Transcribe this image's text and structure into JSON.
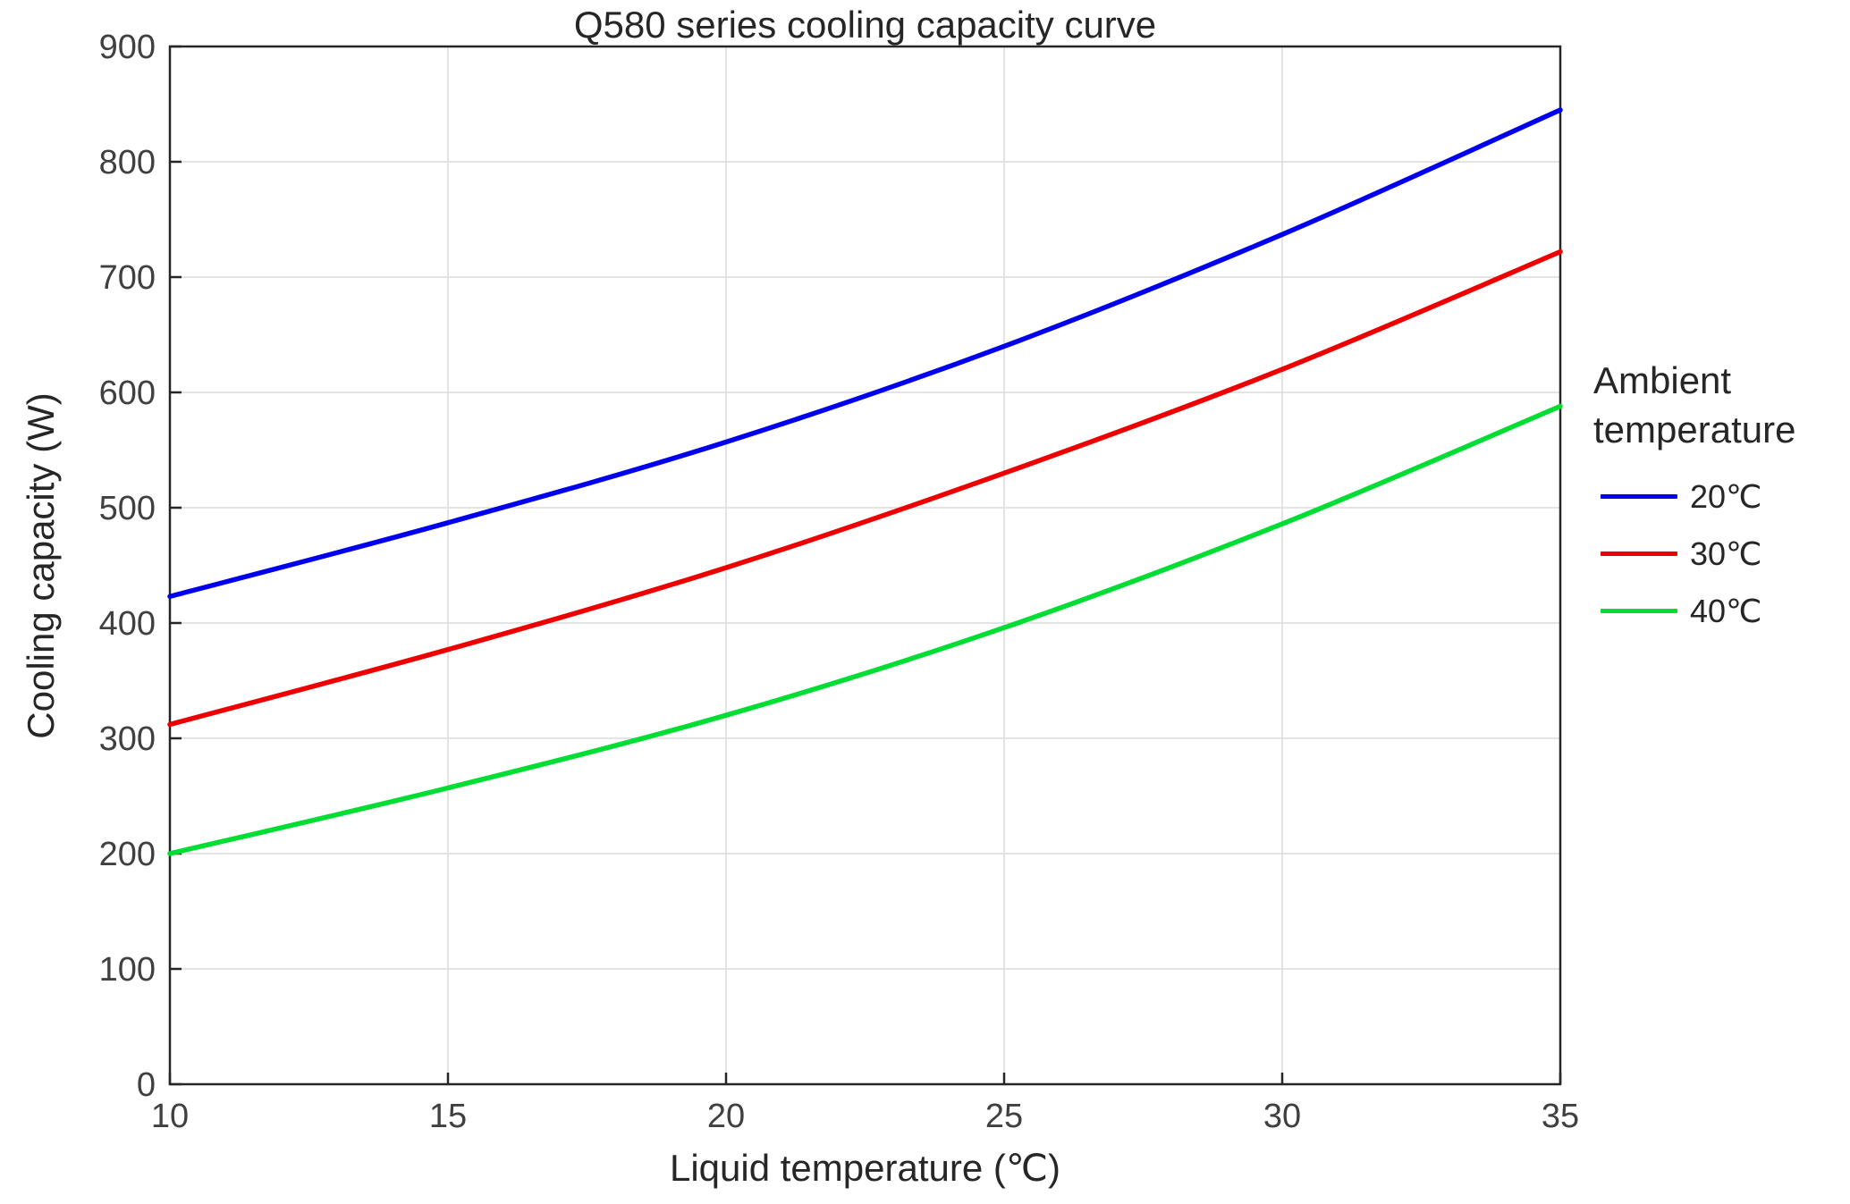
{
  "chart_data": {
    "type": "line",
    "title": "Q580 series cooling capacity curve",
    "xlabel": "Liquid temperature (℃)",
    "ylabel": "Cooling capacity (W)",
    "xlim": [
      10,
      35
    ],
    "ylim": [
      0,
      900
    ],
    "xticks": [
      10,
      15,
      20,
      25,
      30,
      35
    ],
    "yticks": [
      0,
      100,
      200,
      300,
      400,
      500,
      600,
      700,
      800,
      900
    ],
    "grid": true,
    "legend_position": "right",
    "x": [
      10,
      15,
      20,
      25,
      30,
      35
    ],
    "series": [
      {
        "name": "20℃",
        "color": "#0000ee",
        "values": [
          423,
          487,
          557,
          640,
          737,
          845
        ]
      },
      {
        "name": "30℃",
        "color": "#ee0000",
        "values": [
          312,
          377,
          448,
          530,
          620,
          722
        ]
      },
      {
        "name": "40℃",
        "color": "#00dd33",
        "values": [
          200,
          257,
          320,
          396,
          486,
          588
        ]
      }
    ]
  },
  "legend": {
    "title_line1": "Ambient",
    "title_line2": "temperature"
  },
  "style": {
    "grid_color": "#dcdcdc",
    "axis_color": "#262626",
    "tick_label_color": "#404040"
  }
}
